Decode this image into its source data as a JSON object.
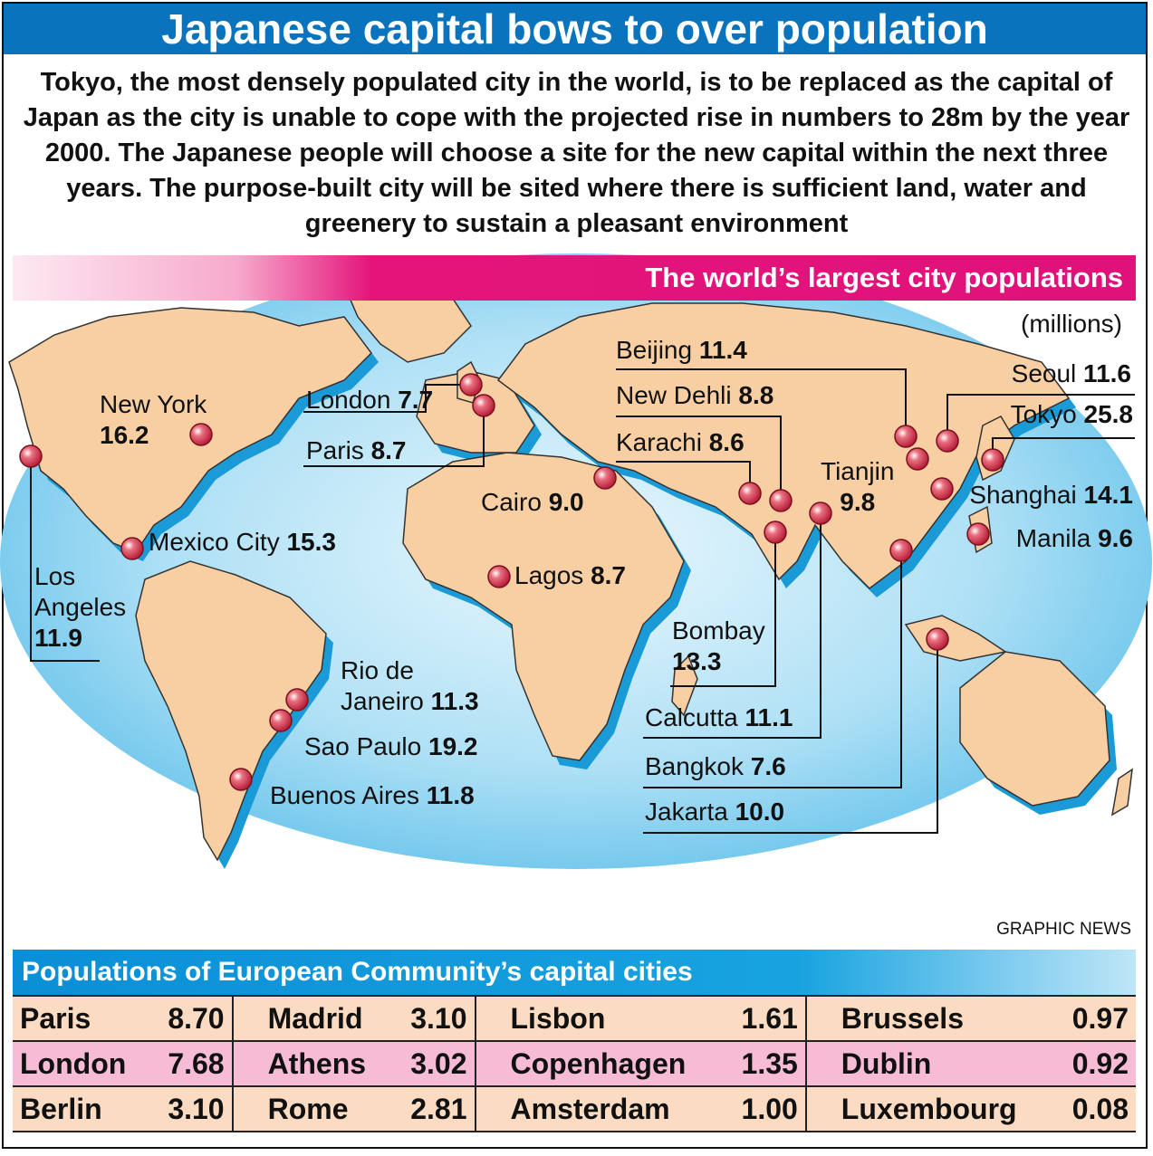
{
  "title": "Japanese capital bows to over population",
  "intro": "Tokyo, the most densely populated city in the world, is to be replaced as the capital of Japan as the city is unable to cope with the projected rise in numbers to 28m by the year 2000. The Japanese people will choose a site for the new capital within the next three years. The purpose-built city will be sited where there is sufficient land, water and greenery to sustain a pleasant environment",
  "map": {
    "header": "The world’s largest city populations",
    "units": "(millions)",
    "colors": {
      "ocean": "#8fd3f0",
      "land": "#f8cfa3",
      "shadow": "#1a9bd8",
      "marker": "#d9374b"
    },
    "cities": [
      {
        "name": "Tokyo",
        "value": "25.8"
      },
      {
        "name": "Sao Paulo",
        "value": "19.2"
      },
      {
        "name": "New York",
        "value": "16.2"
      },
      {
        "name": "Mexico City",
        "value": "15.3"
      },
      {
        "name": "Shanghai",
        "value": "14.1"
      },
      {
        "name": "Bombay",
        "value": "13.3"
      },
      {
        "name": "Los Angeles",
        "value": "11.9"
      },
      {
        "name": "Buenos Aires",
        "value": "11.8"
      },
      {
        "name": "Seoul",
        "value": "11.6"
      },
      {
        "name": "Beijing",
        "value": "11.4"
      },
      {
        "name": "Rio de Janeiro",
        "value": "11.3"
      },
      {
        "name": "Calcutta",
        "value": "11.1"
      },
      {
        "name": "Jakarta",
        "value": "10.0"
      },
      {
        "name": "Tianjin",
        "value": "9.8"
      },
      {
        "name": "Manila",
        "value": "9.6"
      },
      {
        "name": "Cairo",
        "value": "9.0"
      },
      {
        "name": "New Dehli",
        "value": "8.8"
      },
      {
        "name": "Paris",
        "value": "8.7"
      },
      {
        "name": "Lagos",
        "value": "8.7"
      },
      {
        "name": "Karachi",
        "value": "8.6"
      },
      {
        "name": "London",
        "value": "7.7"
      },
      {
        "name": "Bangkok",
        "value": "7.6"
      }
    ]
  },
  "labels": {
    "new_york_name": "New York",
    "new_york_val": "16.2",
    "london_name": "London",
    "london_val": "7.7",
    "paris_name": "Paris",
    "paris_val": "8.7",
    "mexico_name": "Mexico City",
    "mexico_val": "15.3",
    "la_line1": "Los",
    "la_line2": "Angeles",
    "la_val": "11.9",
    "cairo_name": "Cairo",
    "cairo_val": "9.0",
    "lagos_name": "Lagos",
    "lagos_val": "8.7",
    "rio_line1": "Rio de",
    "rio_line2": "Janeiro",
    "rio_val": "11.3",
    "saopaulo_name": "Sao Paulo",
    "saopaulo_val": "19.2",
    "ba_name": "Buenos Aires",
    "ba_val": "11.8",
    "beijing_name": "Beijing",
    "beijing_val": "11.4",
    "dehli_name": "New Dehli",
    "dehli_val": "8.8",
    "karachi_name": "Karachi",
    "karachi_val": "8.6",
    "bombay_name": "Bombay",
    "bombay_val": "13.3",
    "calcutta_name": "Calcutta",
    "calcutta_val": "11.1",
    "bangkok_name": "Bangkok",
    "bangkok_val": "7.6",
    "jakarta_name": "Jakarta",
    "jakarta_val": "10.0",
    "tianjin_name": "Tianjin",
    "tianjin_val": "9.8",
    "seoul_name": "Seoul",
    "seoul_val": "11.6",
    "tokyo_name": "Tokyo",
    "tokyo_val": "25.8",
    "shanghai_name": "Shanghai",
    "shanghai_val": "14.1",
    "manila_name": "Manila",
    "manila_val": "9.6"
  },
  "credit": "GRAPHIC NEWS",
  "eu": {
    "header": "Populations of European Community’s capital cities",
    "rows": [
      [
        {
          "name": "Paris",
          "value": "8.70"
        },
        {
          "name": "Madrid",
          "value": "3.10"
        },
        {
          "name": "Lisbon",
          "value": "1.61"
        },
        {
          "name": "Brussels",
          "value": "0.97"
        }
      ],
      [
        {
          "name": "London",
          "value": "7.68"
        },
        {
          "name": "Athens",
          "value": "3.02"
        },
        {
          "name": "Copenhagen",
          "value": "1.35"
        },
        {
          "name": "Dublin",
          "value": "0.92"
        }
      ],
      [
        {
          "name": "Berlin",
          "value": "3.10"
        },
        {
          "name": "Rome",
          "value": "2.81"
        },
        {
          "name": "Amsterdam",
          "value": "1.00"
        },
        {
          "name": "Luxembourg",
          "value": "0.08"
        }
      ]
    ]
  }
}
